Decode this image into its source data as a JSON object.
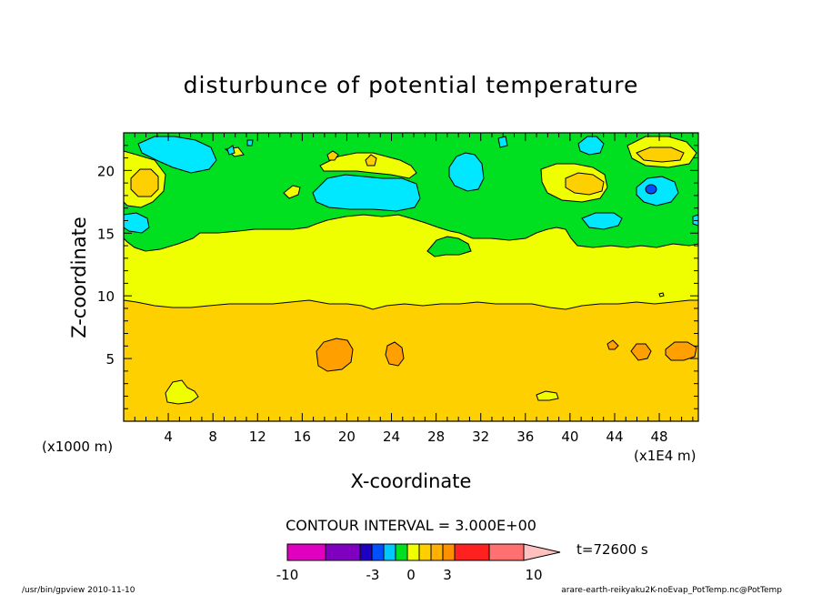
{
  "chart_data": {
    "type": "heatmap",
    "title": "disturbunce of potential temperature",
    "xlabel": "X-coordinate",
    "ylabel": "Z-coordinate",
    "x_unit_left": "(x1000 m)",
    "x_unit_right": "(x1E4 m)",
    "xlim": [
      0,
      51.5
    ],
    "ylim": [
      0,
      23
    ],
    "xticks": [
      "4",
      "8",
      "12",
      "16",
      "20",
      "24",
      "28",
      "32",
      "36",
      "40",
      "44",
      "48"
    ],
    "yticks": [
      "5",
      "10",
      "15",
      "20"
    ],
    "contour_interval_text": "CONTOUR INTERVAL = 3.000E+00",
    "time_label": "t=72600 s",
    "footer_left": "/usr/bin/gpview  2010-11-10",
    "footer_right": "arare-earth-reikyaku2K-noEvap_PotTemp.nc@PotTemp",
    "colorbar": {
      "colors": [
        "#e000c0",
        "#8000c0",
        "#2000c0",
        "#0050ff",
        "#00c8ff",
        "#00e020",
        "#f0ff00",
        "#ffd000",
        "#ffb000",
        "#ff9000",
        "#ff2020",
        "#ff7070",
        "#ffc0c0"
      ],
      "tick_labels": [
        "-10",
        "-3",
        "0",
        "3",
        "10"
      ]
    },
    "field_regions": {
      "lower_layer_value": 1.5,
      "middle_layer_value": 0.5,
      "upper_layer_value": -0.5,
      "lower_layer_top_z": 9.5,
      "middle_layer_top_z_approx": 15,
      "model_top_z": 23
    }
  }
}
